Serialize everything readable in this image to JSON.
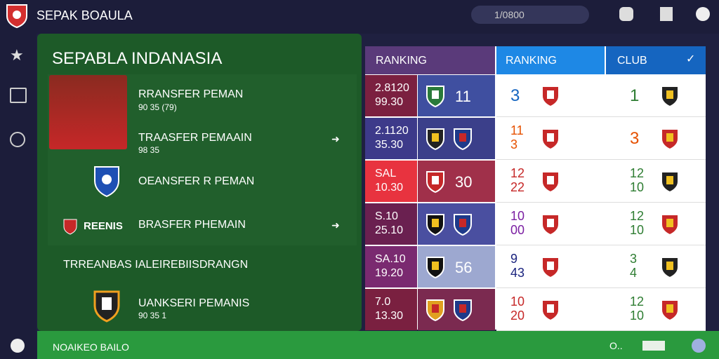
{
  "app": {
    "title": "SEPAK BOAULA",
    "search": "1/0800"
  },
  "panel": {
    "title": "SEPABLA INDANASIA",
    "items": [
      {
        "title": "RRANSFER PEMAN",
        "subtitle": "90 35 (79)"
      },
      {
        "title": "TRAASFER PEMAAIN",
        "subtitle": "98 35"
      },
      {
        "title": "OEANSFER R PEMAN"
      },
      {
        "badge": "REENIS",
        "title": "BRASFER PHEMAIN"
      }
    ],
    "section": "TRREANBAS IALEIREBIISDRANGN",
    "section_item": {
      "title": "UANKSERI PEMANIS",
      "subtitle": "90 35 1"
    }
  },
  "table": {
    "headers": [
      "RANKING",
      "RANKING",
      "CLUB"
    ],
    "rows": [
      {
        "rank": [
          "2.8120",
          "99.30"
        ],
        "score": "11",
        "position": [
          "3"
        ],
        "club": [
          "1"
        ]
      },
      {
        "rank": [
          "2.1120",
          "35.30"
        ],
        "position": [
          "11",
          "3"
        ],
        "club": [
          "3"
        ]
      },
      {
        "rank": [
          "SAL",
          "10.30"
        ],
        "score": "30",
        "position": [
          "12",
          "22"
        ],
        "club": [
          "12",
          "10"
        ]
      },
      {
        "rank": [
          "S.10",
          "25.10"
        ],
        "position": [
          "10",
          "00"
        ],
        "club": [
          "12",
          "10"
        ]
      },
      {
        "rank": [
          "SA.10",
          "19.20"
        ],
        "score": "56",
        "position": [
          "9",
          "43"
        ],
        "club": [
          "3",
          "4"
        ]
      },
      {
        "rank": [
          "7.0",
          "13.30"
        ],
        "position": [
          "10",
          "20"
        ],
        "club": [
          "12",
          "10"
        ]
      }
    ]
  },
  "footer": {
    "label": "NOAIKEO BAILO",
    "status": "O.."
  }
}
